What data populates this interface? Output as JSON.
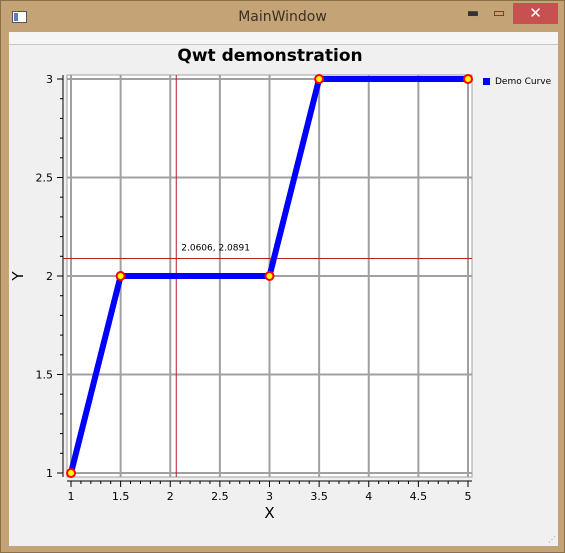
{
  "window": {
    "title": "MainWindow",
    "controls": {
      "minimize": "▬",
      "maximize": "▭",
      "close": "✕"
    }
  },
  "chart_data": {
    "type": "line",
    "title": "Qwt demonstration",
    "xlabel": "X",
    "ylabel": "Y",
    "xlim": [
      1,
      5
    ],
    "ylim": [
      1,
      3
    ],
    "x_ticks": [
      "1",
      "1.5",
      "2",
      "2.5",
      "3",
      "3.5",
      "4",
      "4.5",
      "5"
    ],
    "y_ticks": [
      "1",
      "1.5",
      "2",
      "2.5",
      "3"
    ],
    "grid": true,
    "legend_position": "right",
    "series": [
      {
        "name": "Demo Curve",
        "color": "#0000ff",
        "marker_fill": "#ffff00",
        "marker_edge": "#ff0000",
        "x": [
          1,
          1.5,
          3,
          3.5,
          5
        ],
        "y": [
          1,
          2,
          2,
          3,
          3
        ]
      }
    ],
    "crosshair": {
      "x": 2.0606,
      "y": 2.0891,
      "label": "2.0606, 2.0891",
      "color": "#b22222"
    }
  }
}
